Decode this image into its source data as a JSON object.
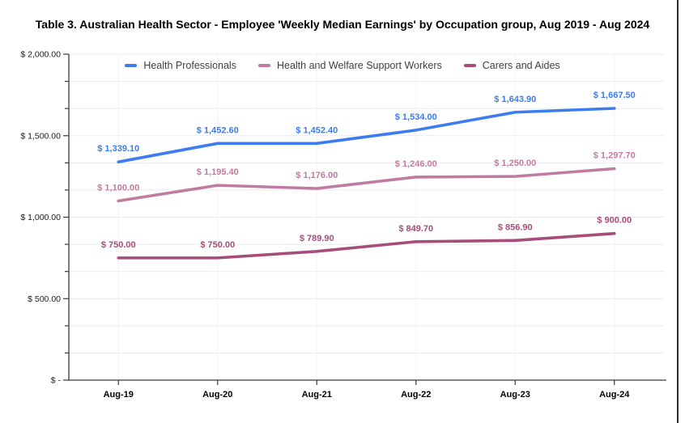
{
  "title": "Table 3. Australian Health Sector - Employee 'Weekly Median Earnings' by Occupation group, Aug 2019 - Aug 2024",
  "chart_data": {
    "type": "line",
    "title": "Table 3. Australian Health Sector - Employee 'Weekly Median Earnings' by Occupation group, Aug 2019 - Aug 2024",
    "categories": [
      "Aug-19",
      "Aug-20",
      "Aug-21",
      "Aug-22",
      "Aug-23",
      "Aug-24"
    ],
    "series": [
      {
        "name": "Health Professionals",
        "color": "#3b7cf2",
        "values": [
          1339.1,
          1452.6,
          1452.4,
          1534.0,
          1643.9,
          1667.5
        ],
        "labels": [
          "$ 1,339.10",
          "$ 1,452.60",
          "$ 1,452.40",
          "$ 1,534.00",
          "$ 1,643.90",
          "$ 1,667.50"
        ]
      },
      {
        "name": "Health and Welfare Support Workers",
        "color": "#c27ba0",
        "values": [
          1100.0,
          1195.4,
          1176.0,
          1246.0,
          1250.0,
          1297.7
        ],
        "labels": [
          "$ 1,100.00",
          "$ 1,195.40",
          "$ 1,176.00",
          "$ 1,246.00",
          "$ 1,250.00",
          "$ 1,297.70"
        ]
      },
      {
        "name": "Carers and Aides",
        "color": "#a64d79",
        "values": [
          750.0,
          750.0,
          789.9,
          849.7,
          856.9,
          900.0
        ],
        "labels": [
          "$ 750.00",
          "$ 750.00",
          "$ 789.90",
          "$ 849.70",
          "$ 856.90",
          "$ 900.00"
        ]
      }
    ],
    "y_axis": {
      "min": 0,
      "max": 2000,
      "minor_divisions": 12,
      "tick_values": [
        2000,
        1500,
        1000,
        500,
        0
      ],
      "tick_labels": [
        "$ 2,000.00",
        "$ 1,500.00",
        "$ 1,000.00",
        "$ 500.00",
        "$ -"
      ]
    },
    "xlabel": "",
    "ylabel": "",
    "grid": true,
    "legend_position": "top"
  },
  "colors": {
    "grid_horizontal": "#ebebeb",
    "grid_vertical": "#f4f4f4",
    "axis": "#3a3a3a",
    "axis_text": "#1a1a1a",
    "legend_text": "#3c4043",
    "border_right": "#2a2a2a",
    "background": "#ffffff"
  }
}
